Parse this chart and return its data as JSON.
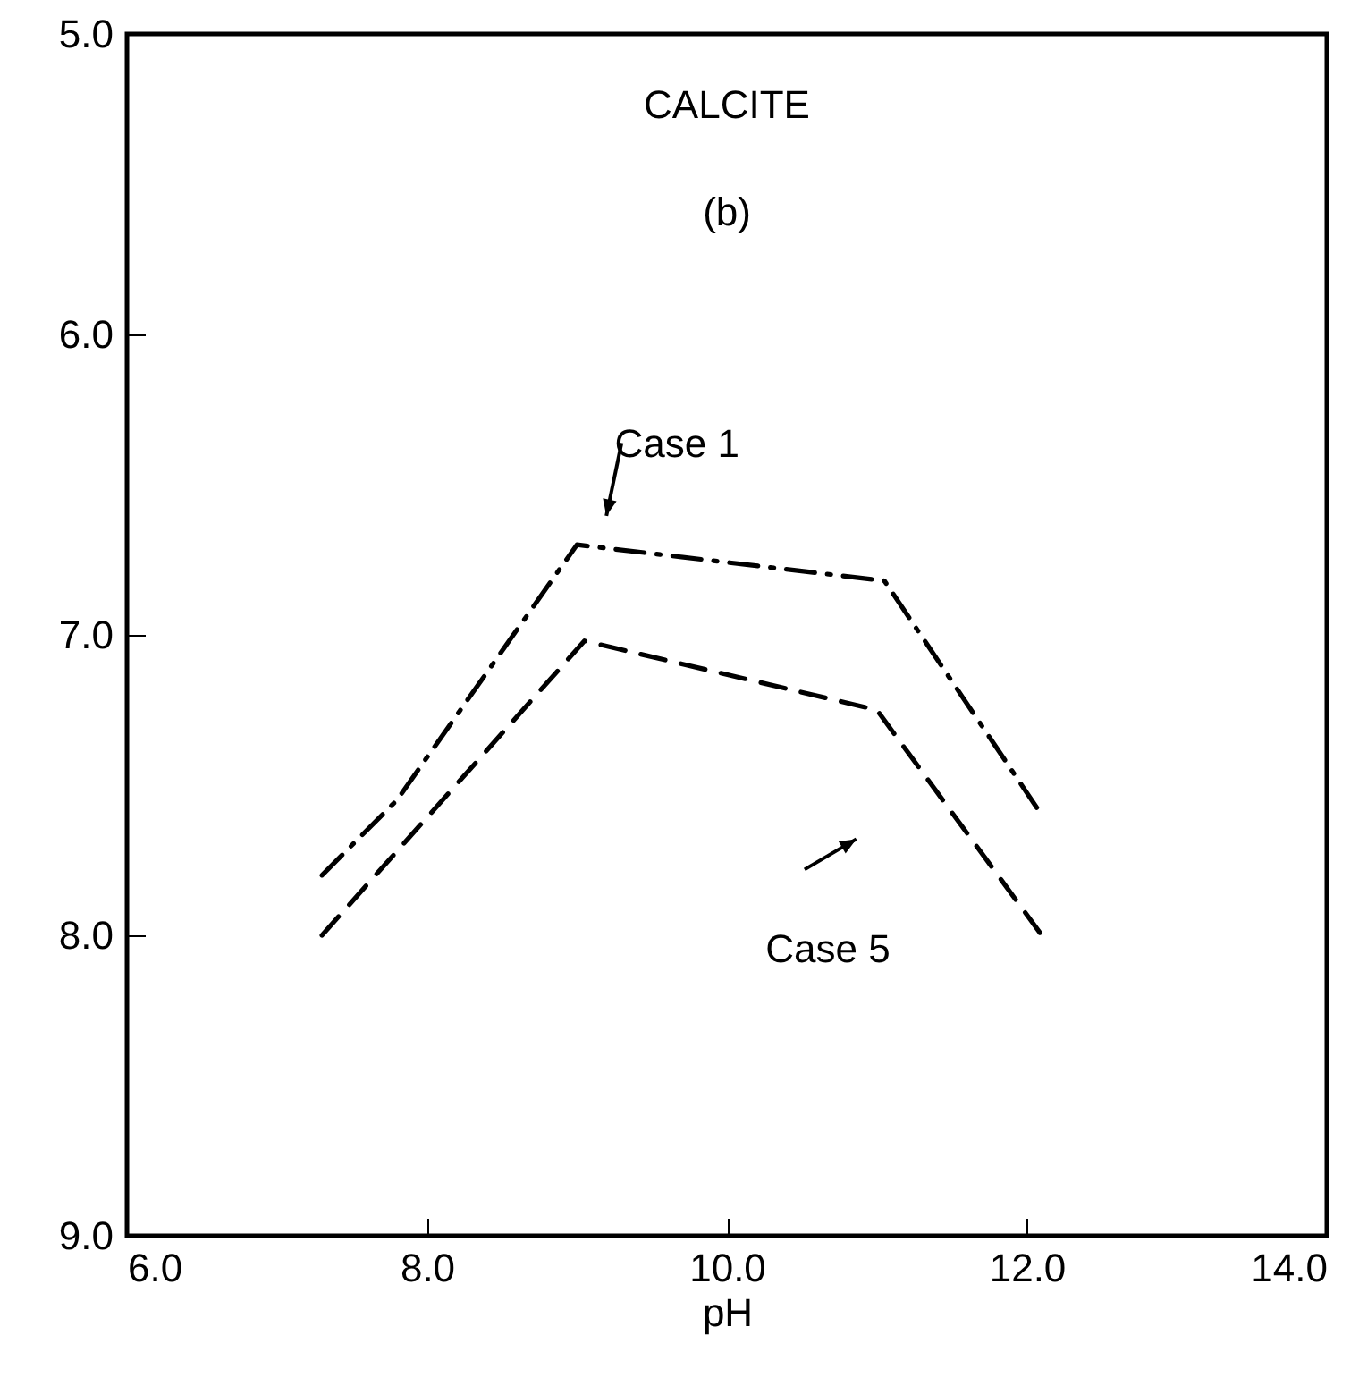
{
  "chart_data": {
    "type": "line",
    "title": "CALCITE",
    "subtitle": "(b)",
    "xlabel": "pH",
    "xlim": [
      6,
      14
    ],
    "ylim": [
      9,
      5
    ],
    "xticks": [
      {
        "value": 6,
        "label": "6.0"
      },
      {
        "value": 8,
        "label": "8.0"
      },
      {
        "value": 10,
        "label": "10.0"
      },
      {
        "value": 12,
        "label": "12.0"
      },
      {
        "value": 14,
        "label": "14.0"
      }
    ],
    "yticks": [
      {
        "value": 5,
        "label": "5.0"
      },
      {
        "value": 6,
        "label": "6.0"
      },
      {
        "value": 7,
        "label": "7.0"
      },
      {
        "value": 8,
        "label": "8.0"
      },
      {
        "value": 9,
        "label": "9.0"
      }
    ],
    "grid": false,
    "series": [
      {
        "name": "Case 1",
        "color": "#000000",
        "line_style": "dashdot",
        "x": [
          7.3,
          7.8,
          9.0,
          11.05,
          12.1
        ],
        "values": [
          7.8,
          7.55,
          6.7,
          6.82,
          7.6
        ]
      },
      {
        "name": "Case 5",
        "color": "#000000",
        "line_style": "dashed",
        "x": [
          7.3,
          9.05,
          11.0,
          12.1
        ],
        "values": [
          8.0,
          7.02,
          7.25,
          8.0
        ]
      }
    ]
  }
}
